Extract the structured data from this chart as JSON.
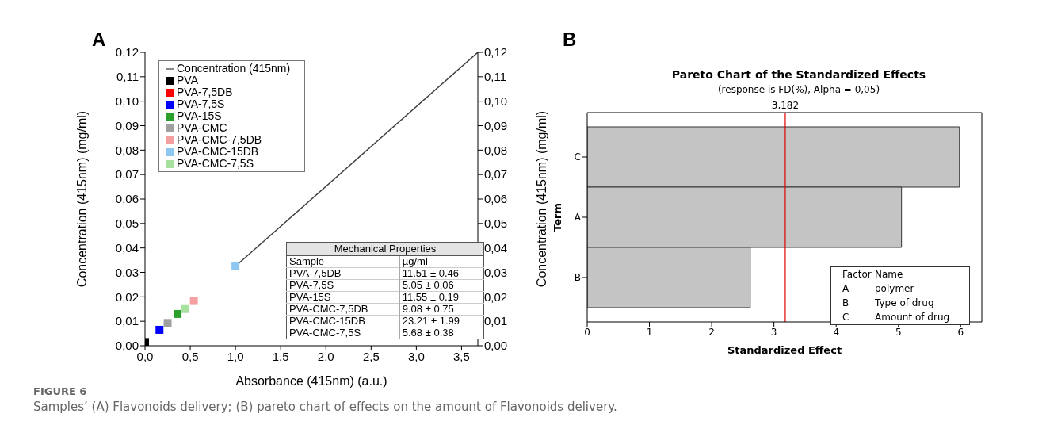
{
  "chart_data": [
    {
      "type": "scatter",
      "xlabel": "Absorbance (415nm) (a.u.)",
      "ylabel": "Concentration (415nm) (mg/ml)",
      "y2label": "Concentration (415nm) (mg/ml)",
      "xlim": [
        0,
        3.68
      ],
      "xticks": [
        {
          "value": 0,
          "label": "0,0"
        },
        {
          "value": 0.5,
          "label": "0,5"
        },
        {
          "value": 1,
          "label": "1,0"
        },
        {
          "value": 1.5,
          "label": "1,5"
        },
        {
          "value": 2,
          "label": "2,0"
        },
        {
          "value": 2.5,
          "label": "2,5"
        },
        {
          "value": 3,
          "label": "3,0"
        },
        {
          "value": 3.5,
          "label": "3,5"
        }
      ],
      "ylim": [
        0,
        0.12
      ],
      "yticks": [
        {
          "value": 0,
          "label": "0,00"
        },
        {
          "value": 0.01,
          "label": "0,01"
        },
        {
          "value": 0.02,
          "label": "0,02"
        },
        {
          "value": 0.03,
          "label": "0,03"
        },
        {
          "value": 0.04,
          "label": "0,04"
        },
        {
          "value": 0.05,
          "label": "0,05"
        },
        {
          "value": 0.06,
          "label": "0,06"
        },
        {
          "value": 0.07,
          "label": "0,07"
        },
        {
          "value": 0.08,
          "label": "0,08"
        },
        {
          "value": 0.09,
          "label": "0,09"
        },
        {
          "value": 0.1,
          "label": "0,10"
        },
        {
          "value": 0.11,
          "label": "0,11"
        },
        {
          "value": 0.12,
          "label": "0,12"
        }
      ],
      "y2lim": [
        0,
        0.12
      ],
      "y2ticks": [
        {
          "value": 0,
          "label": "0,00"
        },
        {
          "value": 0.01,
          "label": "0,01"
        },
        {
          "value": 0.02,
          "label": "0,02"
        },
        {
          "value": 0.03,
          "label": "0,03"
        },
        {
          "value": 0.04,
          "label": "0,04"
        },
        {
          "value": 0.05,
          "label": "0,05"
        },
        {
          "value": 0.06,
          "label": "0,06"
        },
        {
          "value": 0.07,
          "label": "0,07"
        },
        {
          "value": 0.08,
          "label": "0,08"
        },
        {
          "value": 0.09,
          "label": "0,09"
        },
        {
          "value": 0.1,
          "label": "0,10"
        },
        {
          "value": 0.11,
          "label": "0,11"
        },
        {
          "value": 0.12,
          "label": "0,12"
        }
      ],
      "grid": false,
      "legend": "top left",
      "marker": "square",
      "series": [
        {
          "type": "line",
          "name": "Concentration (415nm)",
          "color": "#404040",
          "marker": "none",
          "x": [
            1.0,
            3.68
          ],
          "values": [
            0.0325,
            0.12
          ]
        },
        {
          "name": "PVA",
          "color": "#000000",
          "x": [
            0
          ],
          "values": [
            0.0015
          ]
        },
        {
          "name": "PVA-7,5DB",
          "color": "#ff0000"
        },
        {
          "name": "PVA-7,5S",
          "color": "#0000ff",
          "x": [
            0.16
          ],
          "values": [
            0.0065
          ]
        },
        {
          "name": "PVA-15S",
          "color": "#2ca02c",
          "x": [
            0.36
          ],
          "values": [
            0.013
          ]
        },
        {
          "name": "PVA-CMC",
          "color": "#a0a0a0",
          "x": [
            0.25
          ],
          "values": [
            0.0093
          ]
        },
        {
          "name": "PVA-CMC-7,5DB",
          "color": "#f4a0a0",
          "x": [
            0.54
          ],
          "values": [
            0.0183
          ]
        },
        {
          "name": "PVA-CMC-15DB",
          "color": "#8ec8f0",
          "x": [
            1.0
          ],
          "values": [
            0.0325
          ]
        },
        {
          "name": "PVA-CMC-7,5S",
          "color": "#a8e0a0",
          "x": [
            0.44
          ],
          "values": [
            0.015
          ]
        }
      ],
      "annotations": [
        "A",
        "Mechanical Properties",
        "Sample",
        "µg/ml",
        "PVA-7,5DB",
        "11.51 ± 0.46",
        "PVA-7,5S",
        "5.05 ± 0.06",
        "PVA-15S",
        "11.55 ± 0.19",
        "PVA-CMC-7,5DB",
        "9.08 ± 0.75",
        "PVA-CMC-15DB",
        "23.21 ± 1.99",
        "PVA-CMC-7,5S",
        "5.68 ± 0.38"
      ]
    },
    {
      "type": "bar",
      "orientation": "horizontal",
      "title": "Pareto Chart of the Standardized Effects",
      "subtitle": "(response is FD(%), Alpha = 0,05)",
      "xlabel": "Standardized Effect",
      "ylabel": "Term",
      "categories": [
        "C",
        "A",
        "B"
      ],
      "values": [
        5.98,
        5.05,
        2.62
      ],
      "color": "#c4c4c4",
      "xlim": [
        0,
        6.34
      ],
      "xticks": [
        0,
        1,
        2,
        3,
        4,
        5,
        6
      ],
      "grid": false,
      "ref_lines": [
        {
          "axis": "x",
          "value": 3.182,
          "label": "3,182",
          "color": "#e00000"
        }
      ],
      "annotations": [
        "B",
        "Factor",
        "Name",
        "A",
        "polymer",
        "B",
        "Type of drug",
        "C",
        "Amount of drug",
        "FIGURE 6",
        "Samples’ (A) Flavonoids delivery; (B) pareto chart of effects on the amount of Flavonoids delivery."
      ]
    }
  ]
}
